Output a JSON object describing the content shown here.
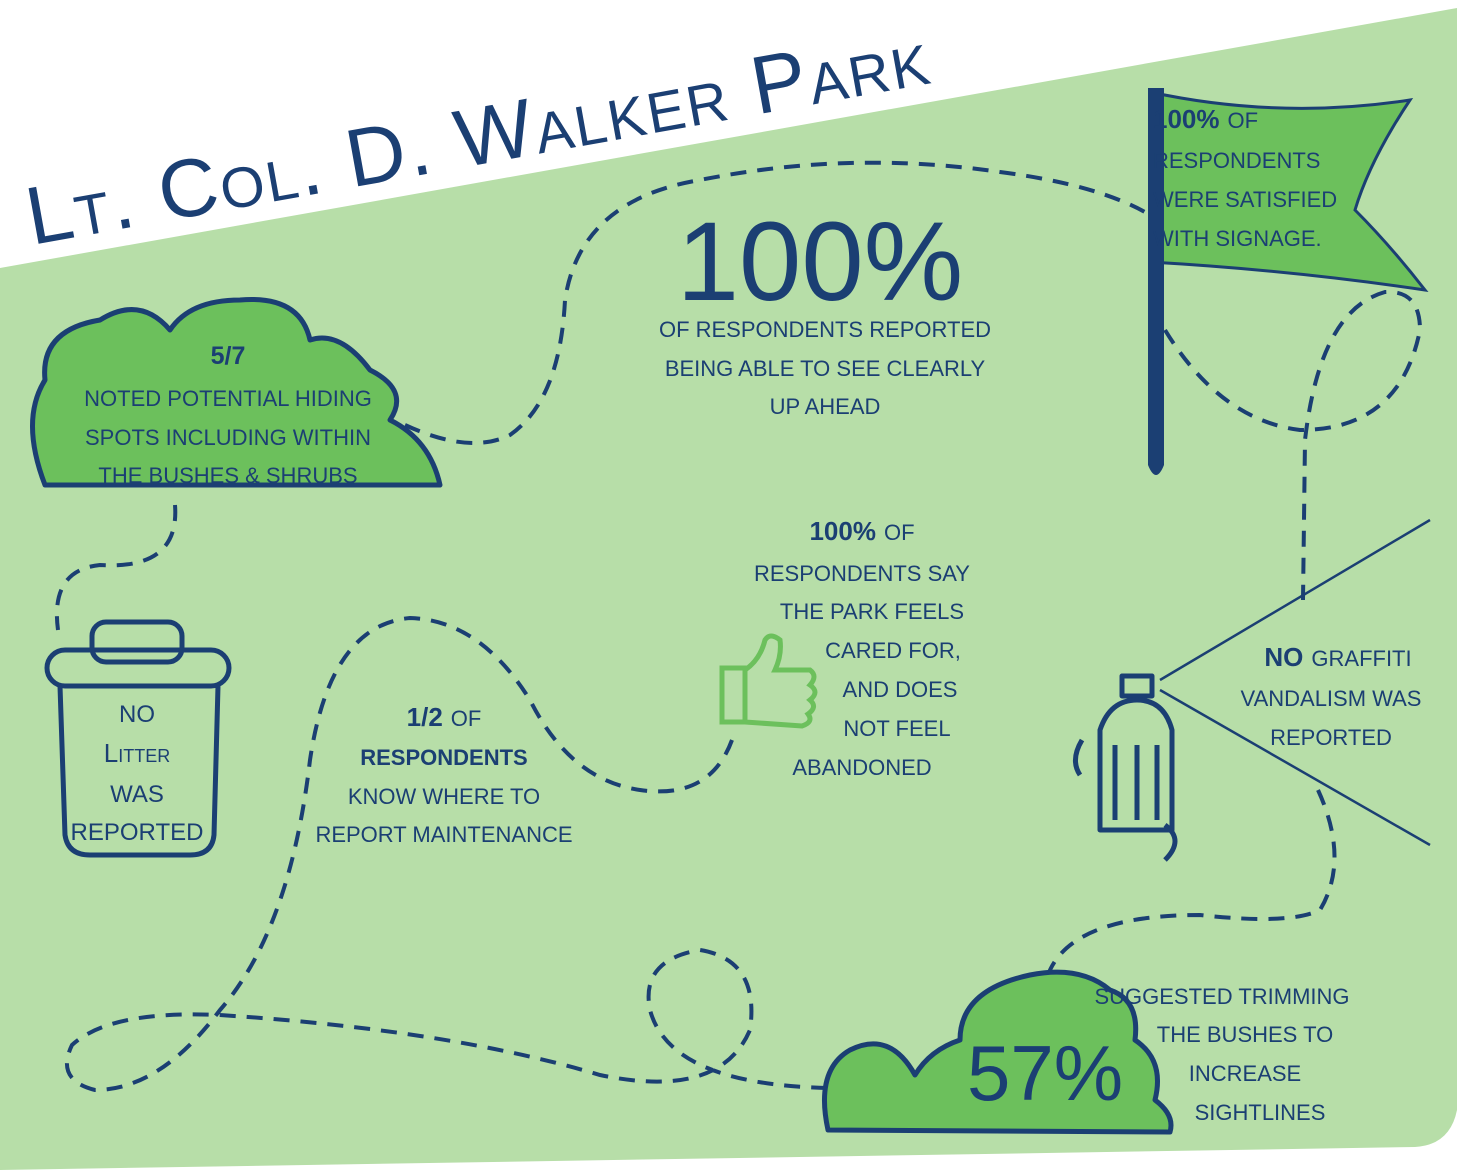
{
  "title": "Lt. Col. D. Walker Park",
  "visibility": {
    "figure": "100%",
    "lines": [
      "OF RESPONDENTS REPORTED",
      "BEING ABLE TO SEE CLEARLY",
      "UP AHEAD"
    ]
  },
  "hiding_spots": {
    "figure": "5/7",
    "lines": [
      "NOTED POTENTIAL HIDING",
      "SPOTS INCLUDING WITHIN",
      "THE BUSHES & SHRUBS"
    ]
  },
  "signage": {
    "highlight": "100%",
    "rest": "OF",
    "lines": [
      "RESPONDENTS",
      "WERE SATISFIED",
      "WITH SIGNAGE."
    ]
  },
  "care": {
    "highlight": "100%",
    "rest": "OF",
    "lines": [
      "RESPONDENTS SAY",
      "THE PARK FEELS",
      "CARED FOR,",
      "AND DOES",
      "NOT FEEL",
      "ABANDONED"
    ]
  },
  "litter": {
    "lines": [
      "NO",
      "Litter",
      "WAS",
      "REPORTED"
    ]
  },
  "maintenance": {
    "highlight": "1/2",
    "rest": "OF",
    "lines": [
      "RESPONDENTS",
      "KNOW WHERE TO",
      "REPORT MAINTENANCE"
    ]
  },
  "graffiti": {
    "highlight": "NO",
    "rest": "GRAFFITI",
    "lines": [
      "VANDALISM WAS",
      "REPORTED"
    ]
  },
  "trimming": {
    "figure": "57%",
    "lines": [
      "SUGGESTED TRIMMING",
      "THE BUSHES TO",
      "INCREASE",
      "SIGHTLINES"
    ]
  }
}
